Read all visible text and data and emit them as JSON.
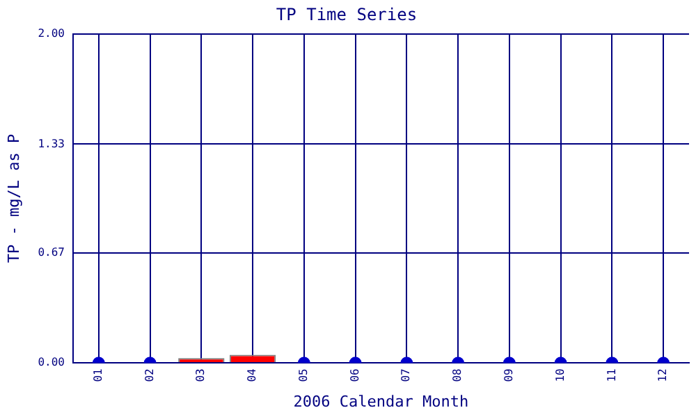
{
  "chart_data": {
    "type": "bar",
    "title": "TP Time Series",
    "xlabel": "2006 Calendar Month",
    "ylabel": "TP - mg/L as P",
    "categories": [
      "01",
      "02",
      "03",
      "04",
      "05",
      "06",
      "07",
      "08",
      "09",
      "10",
      "11",
      "12"
    ],
    "series": [
      {
        "color": "#ff0000",
        "values": [
          null,
          null,
          0.03,
          0.05,
          null,
          null,
          null,
          null,
          null,
          null,
          null,
          null
        ]
      },
      {
        "type": "scatter",
        "color": "#0000cc",
        "values": [
          0,
          0,
          null,
          null,
          0,
          0,
          0,
          0,
          0,
          0,
          0,
          0
        ]
      }
    ],
    "ylim": [
      0,
      2
    ],
    "yticks": [
      {
        "value": 0,
        "label": "0.00"
      },
      0.67,
      1.33,
      {
        "value": 2,
        "label": "2.00"
      }
    ],
    "grid": true,
    "marker": "circle"
  }
}
